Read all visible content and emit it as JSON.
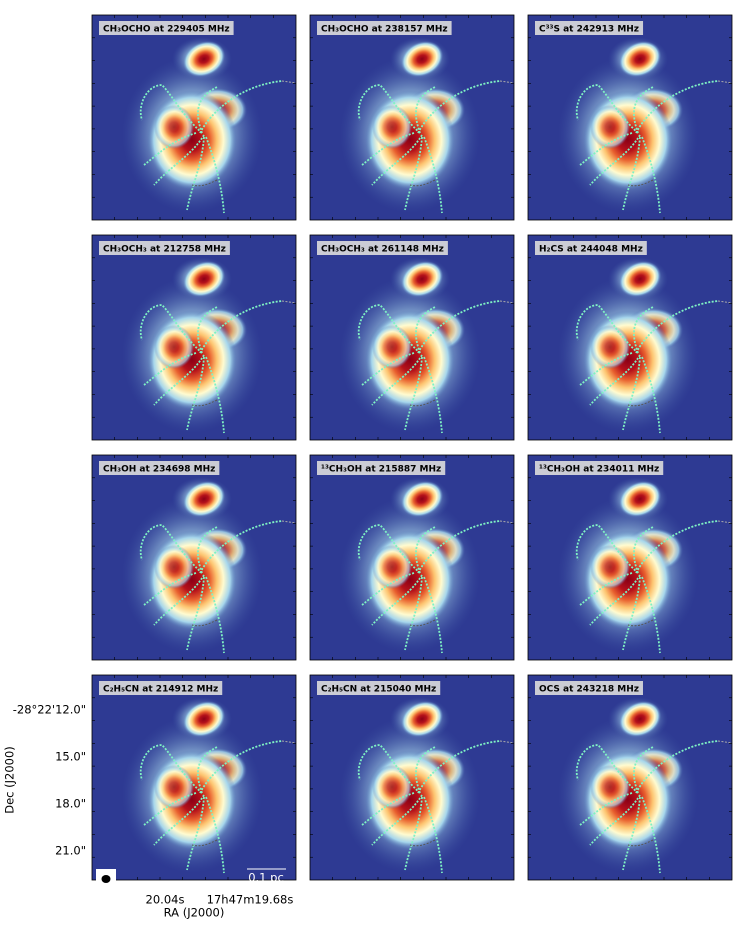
{
  "panels": [
    {
      "label": "CH₃OCHO at 229405 MHz"
    },
    {
      "label": "CH₃OCHO at 238157 MHz"
    },
    {
      "label": "C³³S at 242913 MHz"
    },
    {
      "label": "CH₃OCH₃ at 212758 MHz"
    },
    {
      "label": "CH₃OCH₃ at 261148 MHz"
    },
    {
      "label": "H₂CS at 244048 MHz"
    },
    {
      "label": "CH₃OH at 234698 MHz"
    },
    {
      "label": "¹³CH₃OH at 215887 MHz"
    },
    {
      "label": "¹³CH₃OH at 234011 MHz"
    },
    {
      "label": "C₂H₅CN at 214912 MHz"
    },
    {
      "label": "C₂H₅CN at 215040 MHz"
    },
    {
      "label": "OCS at 243218 MHz"
    }
  ],
  "axes": {
    "dec_label": "Dec (J2000)",
    "ra_label": "RA (J2000)",
    "dec_ticks": [
      "-28°22'12.0\"",
      "15.0\"",
      "18.0\"",
      "21.0\""
    ],
    "ra_ticks": [
      "20.04s",
      "17h47m19.68s"
    ]
  },
  "scale_bar": "0.1 pc"
}
